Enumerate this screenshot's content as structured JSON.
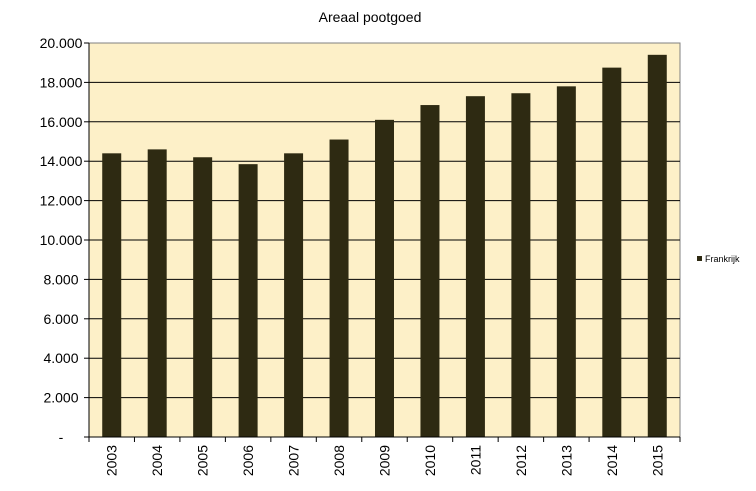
{
  "chart_data": {
    "type": "bar",
    "title": "Areaal pootgoed",
    "categories": [
      "2003",
      "2004",
      "2005",
      "2006",
      "2007",
      "2008",
      "2009",
      "2010",
      "2011",
      "2012",
      "2013",
      "2014",
      "2015"
    ],
    "series": [
      {
        "name": "Frankrijk",
        "color": "#2e2a12",
        "values": [
          14400,
          14600,
          14200,
          13850,
          14400,
          15100,
          16100,
          16850,
          17300,
          17450,
          17800,
          18750,
          19400
        ]
      }
    ],
    "ylim": [
      0,
      20000
    ],
    "yticks": [
      0,
      2000,
      4000,
      6000,
      8000,
      10000,
      12000,
      14000,
      16000,
      18000,
      20000
    ],
    "ytick_labels": [
      "-",
      "2.000",
      "4.000",
      "6.000",
      "8.000",
      "10.000",
      "12.000",
      "14.000",
      "16.000",
      "18.000",
      "20.000"
    ],
    "grid": true,
    "legend": "right",
    "plot_background": "#fdf0c8"
  }
}
